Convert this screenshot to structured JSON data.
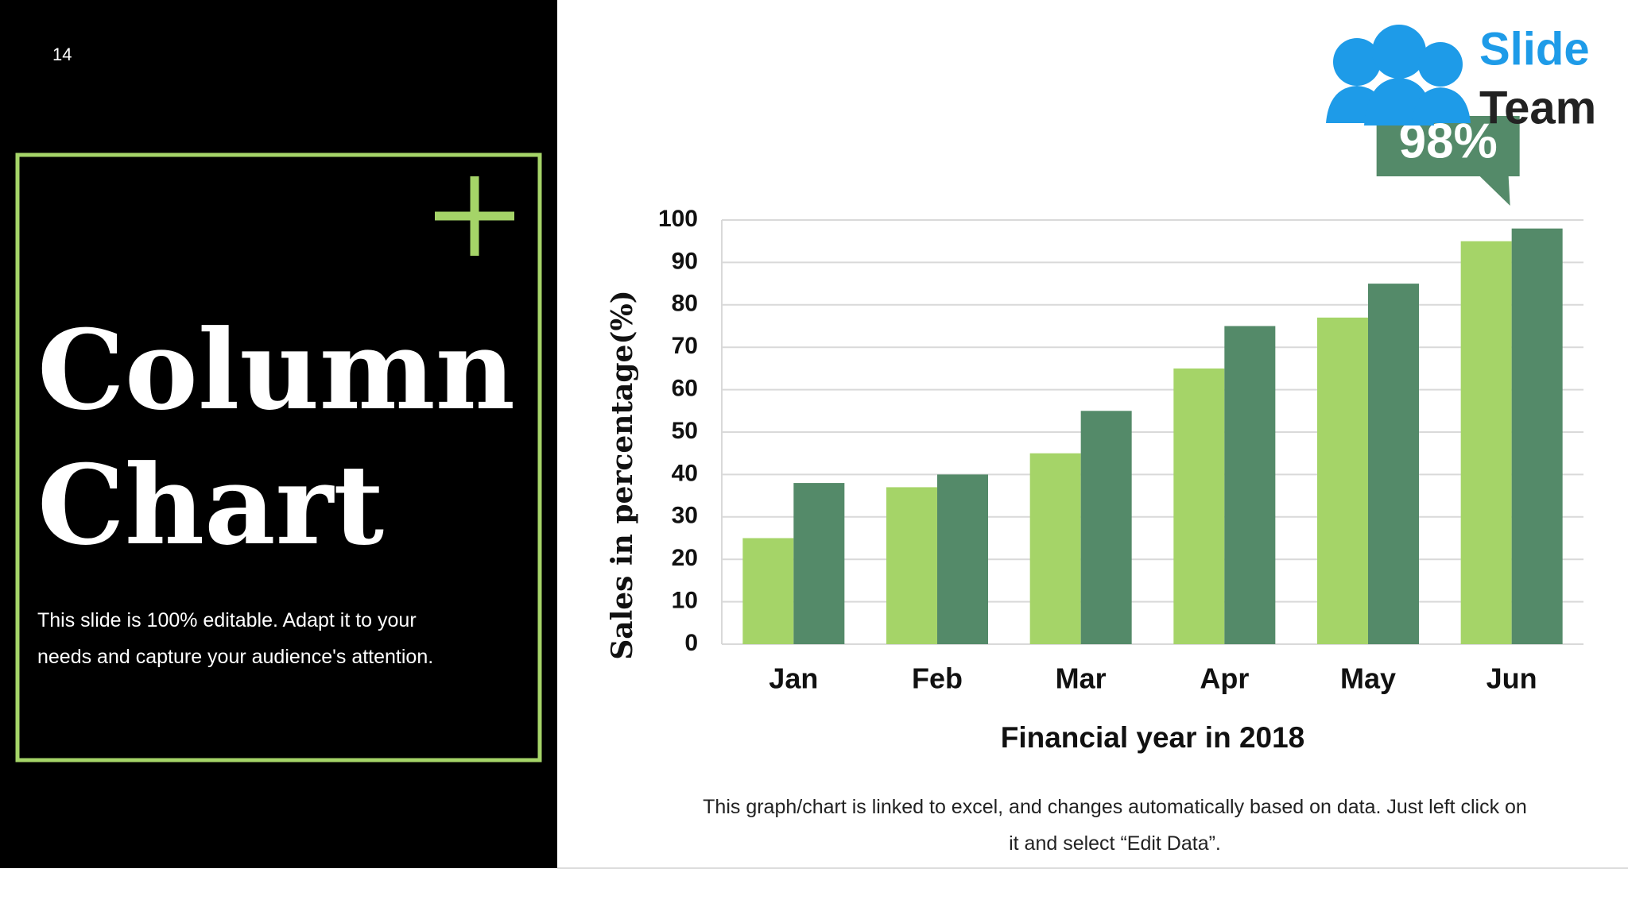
{
  "slide_number": "14",
  "heading": {
    "line1": "Column",
    "line2": "Chart"
  },
  "description": "This slide is 100% editable. Adapt it to your needs and capture your audience's attention.",
  "logo": {
    "word1": "Slide",
    "word2": "Team"
  },
  "note": "This graph/chart is linked to excel, and changes automatically based on data. Just left click on it and select “Edit Data”.",
  "chart_data": {
    "type": "bar",
    "x_label": "Financial year in 2018",
    "y_label": "Sales in percentage(%)",
    "categories": [
      "Jan",
      "Feb",
      "Mar",
      "Apr",
      "May",
      "Jun"
    ],
    "series": [
      {
        "color": "#a5d468",
        "values": [
          25,
          37,
          45,
          65,
          77,
          95
        ]
      },
      {
        "color": "#548a69",
        "values": [
          38,
          40,
          55,
          75,
          85,
          98
        ],
        "value_labels": [
          null,
          null,
          null,
          null,
          null,
          "98%"
        ]
      }
    ],
    "ylim": [
      0,
      100
    ],
    "yticks": [
      0,
      10,
      20,
      30,
      40,
      50,
      60,
      70,
      80,
      90,
      100
    ],
    "grid": true
  }
}
